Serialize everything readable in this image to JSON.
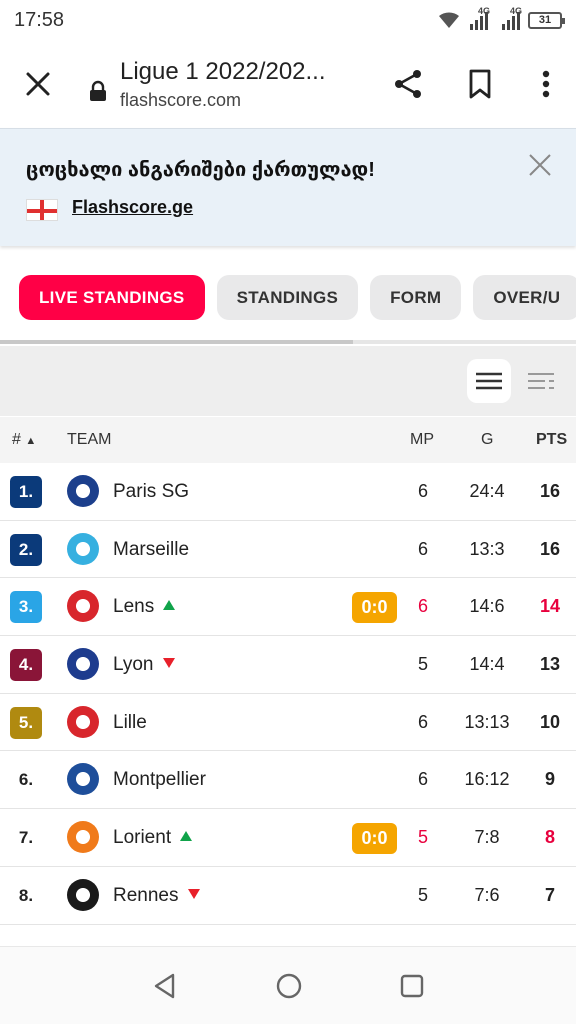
{
  "status": {
    "time": "17:58",
    "net1": "4G",
    "net2": "4G",
    "battery": "31"
  },
  "browser": {
    "title": "Ligue 1 2022/202...",
    "domain": "flashscore.com"
  },
  "banner": {
    "text": "ცოცხალი ანგარიშები ქართულად!",
    "link": "Flashscore.ge"
  },
  "tabs": [
    {
      "label": "LIVE STANDINGS"
    },
    {
      "label": "STANDINGS"
    },
    {
      "label": "FORM"
    },
    {
      "label": "OVER/U"
    }
  ],
  "table": {
    "headers": {
      "rank": "#",
      "team": "TEAM",
      "mp": "MP",
      "g": "G",
      "pts": "PTS"
    },
    "rows": [
      {
        "rank": "1.",
        "team": "Paris SG",
        "mp": "6",
        "g": "24:4",
        "pts": "16",
        "rank_color": "#0b3a7a",
        "logo_color": "#1c3f8c",
        "trend": "",
        "live": ""
      },
      {
        "rank": "2.",
        "team": "Marseille",
        "mp": "6",
        "g": "13:3",
        "pts": "16",
        "rank_color": "#0b3a7a",
        "logo_color": "#36b0e0",
        "trend": "",
        "live": ""
      },
      {
        "rank": "3.",
        "team": "Lens",
        "mp": "6",
        "g": "14:6",
        "pts": "14",
        "rank_color": "#2aa5e6",
        "logo_color": "#d8262c",
        "trend": "up",
        "live": "0:0"
      },
      {
        "rank": "4.",
        "team": "Lyon",
        "mp": "5",
        "g": "14:4",
        "pts": "13",
        "rank_color": "#8a1538",
        "logo_color": "#1e3c8e",
        "trend": "down",
        "live": ""
      },
      {
        "rank": "5.",
        "team": "Lille",
        "mp": "6",
        "g": "13:13",
        "pts": "10",
        "rank_color": "#b08a10",
        "logo_color": "#d8262c",
        "trend": "",
        "live": ""
      },
      {
        "rank": "6.",
        "team": "Montpellier",
        "mp": "6",
        "g": "16:12",
        "pts": "9",
        "rank_color": "",
        "logo_color": "#1e4e9a",
        "trend": "",
        "live": ""
      },
      {
        "rank": "7.",
        "team": "Lorient",
        "mp": "5",
        "g": "7:8",
        "pts": "8",
        "rank_color": "",
        "logo_color": "#f07a1a",
        "trend": "up",
        "live": "0:0"
      },
      {
        "rank": "8.",
        "team": "Rennes",
        "mp": "5",
        "g": "7:6",
        "pts": "7",
        "rank_color": "",
        "logo_color": "#1a1a1a",
        "trend": "down",
        "live": ""
      }
    ]
  },
  "colors": {
    "accent": "#ff0046",
    "live_badge": "#f5a500",
    "live_text": "#e8003d"
  }
}
